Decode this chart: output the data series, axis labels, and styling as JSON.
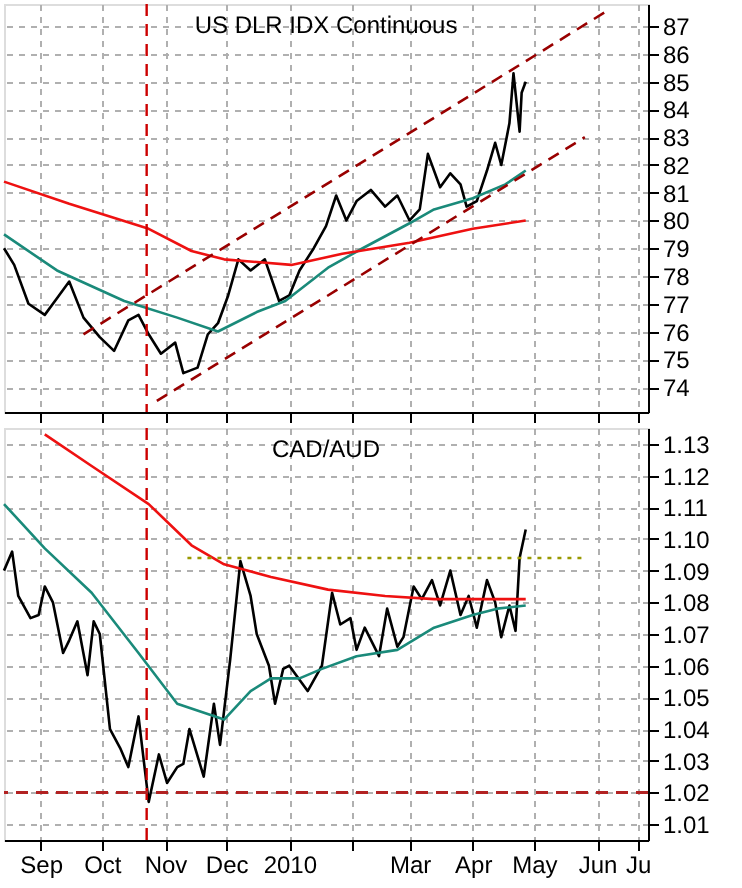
{
  "chart_data": [
    {
      "type": "line",
      "title": "US DLR IDX Continuous",
      "xlim": [
        "2009-08-28",
        "2010-07-10"
      ],
      "ylim": [
        73.1,
        87.8
      ],
      "xticks": [
        {
          "value": "2009-09-15",
          "label": null
        },
        {
          "value": "2009-10-15",
          "label": null
        },
        {
          "value": "2009-11-15",
          "label": null
        },
        {
          "value": "2009-12-15",
          "label": null
        },
        {
          "value": "2010-01-15",
          "label": null
        },
        {
          "value": "2010-02-15",
          "label": null
        },
        {
          "value": "2010-03-15",
          "label": null
        },
        {
          "value": "2010-04-15",
          "label": null
        },
        {
          "value": "2010-05-15",
          "label": null
        },
        {
          "value": "2010-06-15",
          "label": null
        },
        {
          "value": "2010-07-05",
          "label": null
        }
      ],
      "yticks": [
        74,
        75,
        76,
        77,
        78,
        79,
        80,
        81,
        82,
        83,
        84,
        85,
        86,
        87
      ],
      "tick_labels": "y",
      "grid": true,
      "legend": false,
      "marker": "none",
      "series": [
        {
          "color": "#000000",
          "line_style": "solid",
          "x": [
            "2009-08-28",
            "2009-09-02",
            "2009-09-09",
            "2009-09-17",
            "2009-09-23",
            "2009-09-29",
            "2009-10-06",
            "2009-10-14",
            "2009-10-21",
            "2009-10-28",
            "2009-11-02",
            "2009-11-07",
            "2009-11-13",
            "2009-11-20",
            "2009-11-24",
            "2009-12-01",
            "2009-12-06",
            "2009-12-11",
            "2009-12-16",
            "2009-12-21",
            "2009-12-27",
            "2010-01-03",
            "2010-01-10",
            "2010-01-15",
            "2010-01-20",
            "2010-01-27",
            "2010-02-02",
            "2010-02-07",
            "2010-02-12",
            "2010-02-17",
            "2010-02-24",
            "2010-03-03",
            "2010-03-09",
            "2010-03-15",
            "2010-03-20",
            "2010-03-24",
            "2010-03-30",
            "2010-04-04",
            "2010-04-09",
            "2010-04-12",
            "2010-04-17",
            "2010-04-22",
            "2010-04-26",
            "2010-04-29",
            "2010-05-03",
            "2010-05-05",
            "2010-05-08",
            "2010-05-09",
            "2010-05-11"
          ],
          "values": [
            79.0,
            78.4,
            77.0,
            76.6,
            77.2,
            77.8,
            76.5,
            75.8,
            75.3,
            76.4,
            76.6,
            75.9,
            75.2,
            75.6,
            74.5,
            74.7,
            75.9,
            76.3,
            77.3,
            78.6,
            78.2,
            78.6,
            77.1,
            77.3,
            78.2,
            79.0,
            79.8,
            80.9,
            80.0,
            80.7,
            81.1,
            80.5,
            80.9,
            80.0,
            80.4,
            82.4,
            81.2,
            81.7,
            81.3,
            80.5,
            80.7,
            81.8,
            82.8,
            82.0,
            83.5,
            85.3,
            83.2,
            84.6,
            85.0
          ]
        },
        {
          "color": "#1a8a7a",
          "line_style": "solid",
          "x": [
            "2009-08-28",
            "2009-09-23",
            "2009-10-26",
            "2009-11-21",
            "2009-12-11",
            "2009-12-30",
            "2010-01-13",
            "2010-02-03",
            "2010-02-20",
            "2010-03-15",
            "2010-03-27",
            "2010-04-15",
            "2010-05-01",
            "2010-05-11"
          ],
          "values": [
            79.5,
            78.2,
            77.1,
            76.5,
            76.0,
            76.7,
            77.1,
            78.3,
            79.0,
            79.9,
            80.4,
            80.8,
            81.3,
            81.8
          ]
        },
        {
          "color": "#ee1111",
          "line_style": "solid",
          "x": [
            "2009-08-28",
            "2009-09-29",
            "2009-11-07",
            "2009-11-28",
            "2009-12-14",
            "2010-01-16",
            "2010-02-10",
            "2010-03-15",
            "2010-04-15",
            "2010-05-11"
          ],
          "values": [
            81.4,
            80.6,
            79.7,
            78.9,
            78.6,
            78.4,
            78.8,
            79.2,
            79.7,
            80.0
          ]
        },
        {
          "color": "#990000",
          "line_style": "dashed",
          "x": [
            "2009-10-06",
            "2010-06-21"
          ],
          "values": [
            75.9,
            87.6
          ]
        },
        {
          "color": "#990000",
          "line_style": "dashed",
          "x": [
            "2009-11-11",
            "2010-06-09"
          ],
          "values": [
            73.5,
            83.0
          ]
        }
      ],
      "ref_lines": [
        {
          "axis": "x",
          "value": "2009-11-06",
          "color": "#cc0000",
          "line_style": "dashed"
        }
      ]
    },
    {
      "type": "line",
      "title": "CAD/AUD",
      "xlim": [
        "2009-08-28",
        "2010-07-10"
      ],
      "ylim": [
        1.005,
        1.135
      ],
      "xticks": [
        {
          "value": "2009-09-15",
          "label": "Sep"
        },
        {
          "value": "2009-10-15",
          "label": "Oct"
        },
        {
          "value": "2009-11-15",
          "label": "Nov"
        },
        {
          "value": "2009-12-15",
          "label": "Dec"
        },
        {
          "value": "2010-01-15",
          "label": "2010"
        },
        {
          "value": "2010-02-15",
          "label": null
        },
        {
          "value": "2010-03-15",
          "label": "Mar"
        },
        {
          "value": "2010-04-15",
          "label": "Apr"
        },
        {
          "value": "2010-05-15",
          "label": "May"
        },
        {
          "value": "2010-06-15",
          "label": "Jun"
        },
        {
          "value": "2010-07-05",
          "label": "Ju"
        }
      ],
      "yticks": [
        1.01,
        1.02,
        1.03,
        1.04,
        1.05,
        1.06,
        1.07,
        1.08,
        1.09,
        {
          "value": 1.1,
          "label": "1.10"
        },
        1.11,
        1.12,
        1.13
      ],
      "grid": true,
      "legend": false,
      "marker": "none",
      "series": [
        {
          "color": "#000000",
          "line_style": "solid",
          "x": [
            "2009-08-28",
            "2009-09-01",
            "2009-09-04",
            "2009-09-10",
            "2009-09-14",
            "2009-09-17",
            "2009-09-21",
            "2009-09-26",
            "2009-09-29",
            "2009-10-03",
            "2009-10-08",
            "2009-10-11",
            "2009-10-14",
            "2009-10-19",
            "2009-10-24",
            "2009-10-28",
            "2009-11-02",
            "2009-11-07",
            "2009-11-12",
            "2009-11-16",
            "2009-11-21",
            "2009-11-24",
            "2009-11-27",
            "2009-12-04",
            "2009-12-09",
            "2009-12-12",
            "2009-12-17",
            "2009-12-22",
            "2009-12-27",
            "2009-12-30",
            "2010-01-05",
            "2010-01-08",
            "2010-01-12",
            "2010-01-15",
            "2010-01-24",
            "2010-01-31",
            "2010-02-05",
            "2010-02-09",
            "2010-02-14",
            "2010-02-17",
            "2010-02-21",
            "2010-02-28",
            "2010-03-04",
            "2010-03-09",
            "2010-03-12",
            "2010-03-17",
            "2010-03-21",
            "2010-03-26",
            "2010-03-30",
            "2010-04-04",
            "2010-04-09",
            "2010-04-13",
            "2010-04-17",
            "2010-04-22",
            "2010-04-26",
            "2010-04-29",
            "2010-05-03",
            "2010-05-06",
            "2010-05-08",
            "2010-05-11"
          ],
          "values": [
            1.09,
            1.096,
            1.082,
            1.075,
            1.076,
            1.085,
            1.08,
            1.064,
            1.068,
            1.074,
            1.057,
            1.074,
            1.07,
            1.04,
            1.034,
            1.028,
            1.044,
            1.017,
            1.032,
            1.023,
            1.028,
            1.029,
            1.04,
            1.025,
            1.048,
            1.035,
            1.062,
            1.093,
            1.082,
            1.07,
            1.06,
            1.048,
            1.059,
            1.06,
            1.052,
            1.06,
            1.083,
            1.073,
            1.075,
            1.065,
            1.072,
            1.063,
            1.078,
            1.066,
            1.069,
            1.085,
            1.081,
            1.087,
            1.079,
            1.09,
            1.076,
            1.082,
            1.072,
            1.087,
            1.08,
            1.069,
            1.079,
            1.071,
            1.094,
            1.103
          ]
        },
        {
          "color": "#1a8a7a",
          "line_style": "solid",
          "x": [
            "2009-08-28",
            "2009-09-17",
            "2009-10-10",
            "2009-11-02",
            "2009-11-21",
            "2009-12-14",
            "2009-12-27",
            "2010-01-06",
            "2010-01-20",
            "2010-01-31",
            "2010-02-17",
            "2010-03-09",
            "2010-03-27",
            "2010-04-15",
            "2010-04-27",
            "2010-05-11"
          ],
          "values": [
            1.111,
            1.097,
            1.083,
            1.064,
            1.048,
            1.043,
            1.052,
            1.056,
            1.056,
            1.059,
            1.063,
            1.065,
            1.072,
            1.076,
            1.078,
            1.079
          ]
        },
        {
          "color": "#ee1111",
          "line_style": "solid",
          "x": [
            "2009-09-17",
            "2009-10-10",
            "2009-11-07",
            "2009-11-28",
            "2009-12-14",
            "2010-01-06",
            "2010-02-03",
            "2010-03-03",
            "2010-03-27",
            "2010-04-27",
            "2010-05-11"
          ],
          "values": [
            1.133,
            1.123,
            1.111,
            1.098,
            1.092,
            1.088,
            1.084,
            1.082,
            1.081,
            1.081,
            1.081
          ]
        },
        {
          "color": "#999900",
          "line_style": "dotted",
          "x": [
            "2009-11-26",
            "2010-06-08"
          ],
          "values": [
            1.094,
            1.094
          ]
        }
      ],
      "ref_lines": [
        {
          "axis": "x",
          "value": "2009-11-06",
          "color": "#cc0000",
          "line_style": "dashed"
        },
        {
          "axis": "y",
          "value": 1.02,
          "color": "#b22222",
          "line_style": "dashed"
        }
      ]
    }
  ]
}
